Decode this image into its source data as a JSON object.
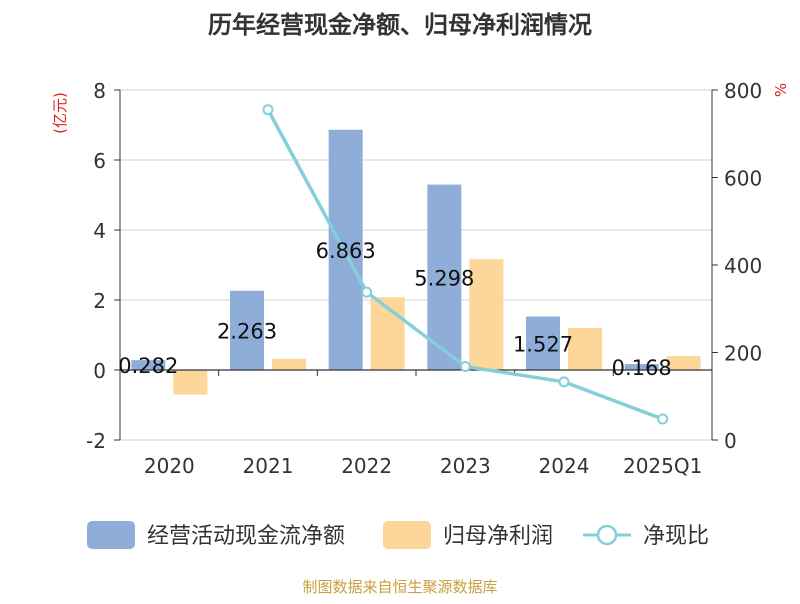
{
  "chart_data": {
    "type": "bar",
    "title": "历年经营现金净额、归母净利润情况",
    "categories": [
      "2020",
      "2021",
      "2022",
      "2023",
      "2024",
      "2025Q1"
    ],
    "y_left": {
      "unit_label": "(亿元)",
      "range": [
        -2,
        8
      ],
      "ticks": [
        -2,
        0,
        2,
        4,
        6,
        8
      ]
    },
    "y_right": {
      "unit_label": "%",
      "range": [
        0,
        800
      ],
      "ticks": [
        0,
        200,
        400,
        600,
        800
      ]
    },
    "series": [
      {
        "name": "经营活动现金流净额",
        "type": "bar",
        "axis": "left",
        "color": "#8eadd9",
        "values": [
          0.282,
          2.263,
          6.863,
          5.298,
          1.527,
          0.168
        ],
        "labels": [
          "0.282",
          "2.263",
          "6.863",
          "5.298",
          "1.527",
          "0.168"
        ]
      },
      {
        "name": "归母净利润",
        "type": "bar",
        "axis": "left",
        "color": "#fdd799",
        "values": [
          -0.7,
          0.32,
          2.08,
          3.17,
          1.2,
          0.4
        ]
      },
      {
        "name": "净现比",
        "type": "line",
        "axis": "right",
        "color": "#85cfd9",
        "values": [
          null,
          755,
          338,
          168,
          133,
          48
        ]
      }
    ],
    "grid": true,
    "legend_position": "bottom"
  },
  "source_text": "制图数据来自恒生聚源数据库"
}
